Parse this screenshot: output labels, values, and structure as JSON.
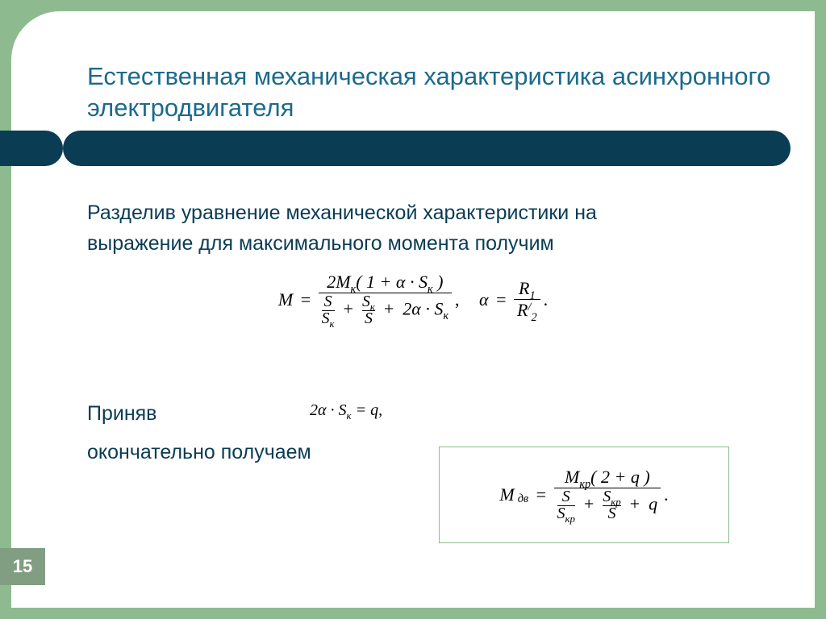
{
  "colors": {
    "page_bg": "#8dbb8f",
    "slide_bg": "#ffffff",
    "accent": "#0a3c54",
    "title_color": "#1b6a8c",
    "body_color": "#0a3c54",
    "pagenum_bg": "#819e83",
    "box_border": "#8dbb8f"
  },
  "page_number": "15",
  "title": "Естественная механическая характеристика асинхронного электродвигателя",
  "paragraph1_line1": "Разделив уравнение механической характеристики на",
  "paragraph1_line2": "выражение для максимального момента получим",
  "paragraph2_line1": "Приняв",
  "paragraph2_line2": "окончательно получаем",
  "formula_main": {
    "lhs": "M",
    "numerator_prefix": "2M",
    "numerator_sub": "к",
    "numerator_paren": "( 1 + α · S",
    "numerator_paren_sub": "к",
    "numerator_paren_close": " )",
    "den_t1_num": "S",
    "den_t1_den": "S",
    "den_t1_den_sub": "к",
    "den_t2_num": "S",
    "den_t2_num_sub": "к",
    "den_t2_den": "S",
    "den_t3": "2α · S",
    "den_t3_sub": "к",
    "comma": ",",
    "alpha_lhs": "α",
    "alpha_num": "R",
    "alpha_num_sub": "1",
    "alpha_den": "R",
    "alpha_den_sup": "/",
    "alpha_den_sub": "2",
    "period": "."
  },
  "formula_q": {
    "text1": "2α · S",
    "sub1": "к",
    "text2": " = q,",
    "fontsize": 20
  },
  "formula_result": {
    "lhs": "M",
    "lhs_sub": "дв",
    "num_prefix": "M",
    "num_sub": "кр",
    "num_paren": "( 2 + q )",
    "den_t1_num": "S",
    "den_t1_den": "S",
    "den_t1_den_sub": "кр",
    "den_t2_num": "S",
    "den_t2_num_sub": "кр",
    "den_t2_den": "S",
    "den_t3": "q",
    "period": "."
  },
  "layout": {
    "slide_width": 996,
    "slide_height": 740,
    "corner_radius_tl": 60,
    "title_fontsize": 31,
    "body_fontsize": 25,
    "formula_fontsize": 22
  }
}
